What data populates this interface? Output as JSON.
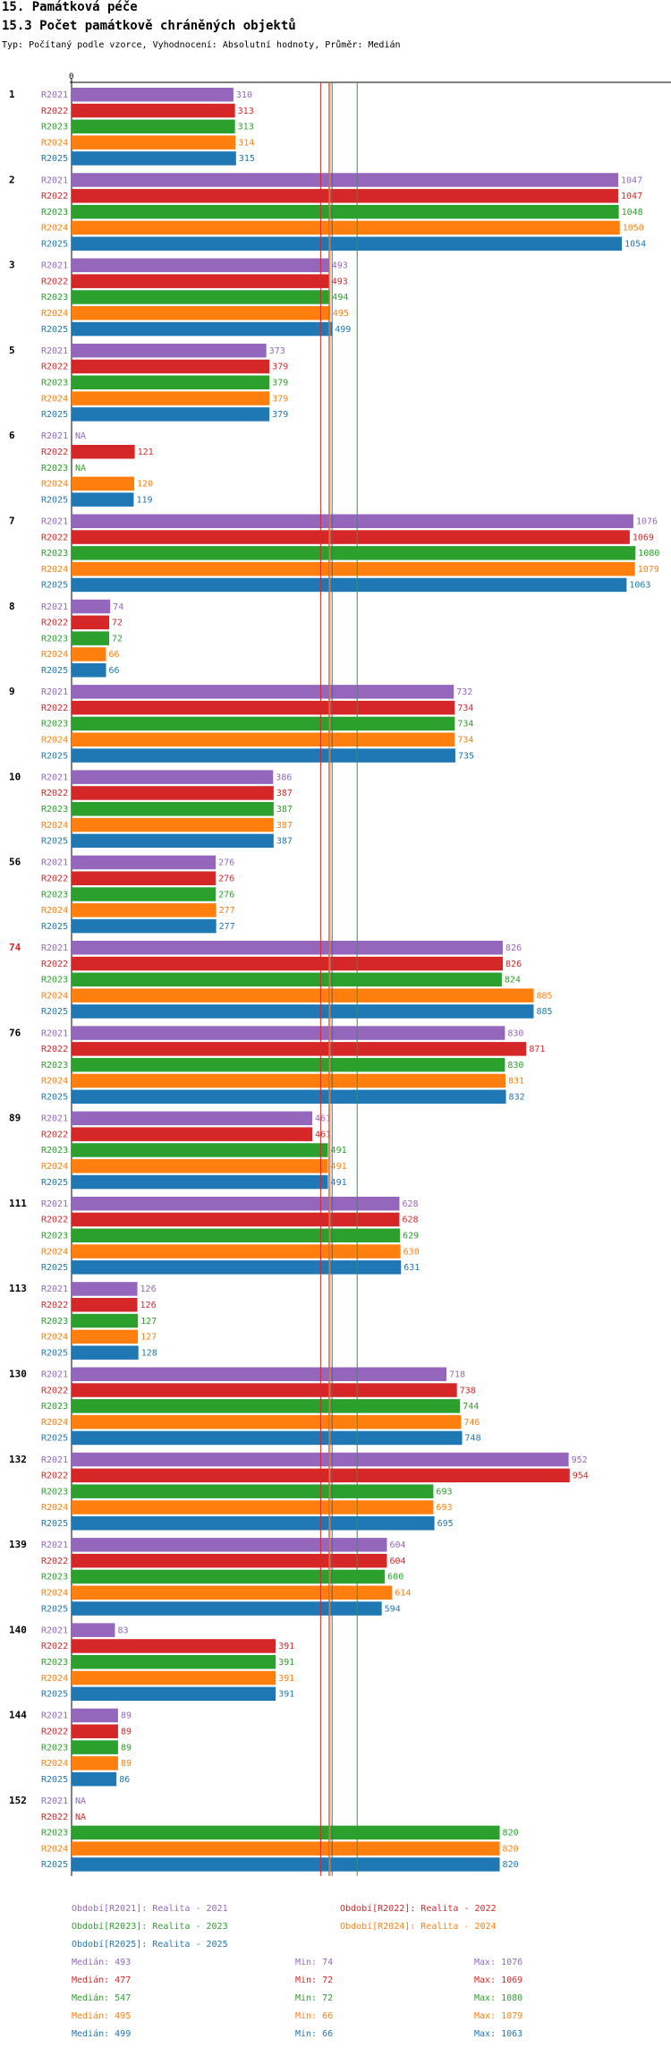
{
  "header": {
    "title": "15. Památková péče",
    "subtitle": "15.3 Počet památkově chráněných objektů",
    "type_line": "Typ: Počítaný podle vzorce, Vyhodnocení: Absolutní hodnoty, Průměr: Medián"
  },
  "colors": {
    "R2021": "#9467bd",
    "R2022": "#d62728",
    "R2023": "#2ca02c",
    "R2024": "#ff7f0e",
    "R2025": "#1f77b4",
    "highlight": "#d62728"
  },
  "chart_data": {
    "type": "bar",
    "orientation": "horizontal",
    "axis_zero_label": "0",
    "xlim": [
      0,
      1160
    ],
    "series_names": [
      "R2021",
      "R2022",
      "R2023",
      "R2024",
      "R2025"
    ],
    "na_label": "NA",
    "highlight_category": "74",
    "categories": [
      {
        "label": "1",
        "values": [
          310,
          313,
          313,
          314,
          315
        ]
      },
      {
        "label": "2",
        "values": [
          1047,
          1047,
          1048,
          1050,
          1054
        ]
      },
      {
        "label": "3",
        "values": [
          493,
          493,
          494,
          495,
          499
        ]
      },
      {
        "label": "5",
        "values": [
          373,
          379,
          379,
          379,
          379
        ]
      },
      {
        "label": "6",
        "values": [
          null,
          121,
          null,
          120,
          119
        ]
      },
      {
        "label": "7",
        "values": [
          1076,
          1069,
          1080,
          1079,
          1063
        ]
      },
      {
        "label": "8",
        "values": [
          74,
          72,
          72,
          66,
          66
        ]
      },
      {
        "label": "9",
        "values": [
          732,
          734,
          734,
          734,
          735
        ]
      },
      {
        "label": "10",
        "values": [
          386,
          387,
          387,
          387,
          387
        ]
      },
      {
        "label": "56",
        "values": [
          276,
          276,
          276,
          277,
          277
        ]
      },
      {
        "label": "74",
        "values": [
          826,
          826,
          824,
          885,
          885
        ]
      },
      {
        "label": "76",
        "values": [
          830,
          871,
          830,
          831,
          832
        ]
      },
      {
        "label": "89",
        "values": [
          461,
          461,
          491,
          491,
          491
        ]
      },
      {
        "label": "111",
        "values": [
          628,
          628,
          629,
          630,
          631
        ]
      },
      {
        "label": "113",
        "values": [
          126,
          126,
          127,
          127,
          128
        ]
      },
      {
        "label": "130",
        "values": [
          718,
          738,
          744,
          746,
          748
        ]
      },
      {
        "label": "132",
        "values": [
          952,
          954,
          693,
          693,
          695
        ]
      },
      {
        "label": "139",
        "values": [
          604,
          604,
          600,
          614,
          594
        ]
      },
      {
        "label": "140",
        "values": [
          83,
          391,
          391,
          391,
          391
        ]
      },
      {
        "label": "144",
        "values": [
          89,
          89,
          89,
          89,
          86
        ]
      },
      {
        "label": "152",
        "values": [
          null,
          null,
          820,
          820,
          820
        ]
      }
    ],
    "reference_lines": [
      {
        "series": "R2021",
        "value": 493
      },
      {
        "series": "R2022",
        "value": 477
      },
      {
        "series": "R2023",
        "value": 547
      },
      {
        "series": "R2024",
        "value": 495
      },
      {
        "series": "R2025",
        "value": 499
      }
    ]
  },
  "legend": {
    "periods": [
      {
        "series": "R2021",
        "text": "Období[R2021]: Realita - 2021"
      },
      {
        "series": "R2022",
        "text": "Období[R2022]: Realita - 2022"
      },
      {
        "series": "R2023",
        "text": "Období[R2023]: Realita - 2023"
      },
      {
        "series": "R2024",
        "text": "Období[R2024]: Realita - 2024"
      },
      {
        "series": "R2025",
        "text": "Období[R2025]: Realita - 2025"
      }
    ],
    "stats": [
      {
        "series": "R2021",
        "median": "Medián: 493",
        "min": "Min: 74",
        "max": "Max: 1076"
      },
      {
        "series": "R2022",
        "median": "Medián: 477",
        "min": "Min: 72",
        "max": "Max: 1069"
      },
      {
        "series": "R2023",
        "median": "Medián: 547",
        "min": "Min: 72",
        "max": "Max: 1080"
      },
      {
        "series": "R2024",
        "median": "Medián: 495",
        "min": "Min: 66",
        "max": "Max: 1079"
      },
      {
        "series": "R2025",
        "median": "Medián: 499",
        "min": "Min: 66",
        "max": "Max: 1063"
      }
    ]
  }
}
